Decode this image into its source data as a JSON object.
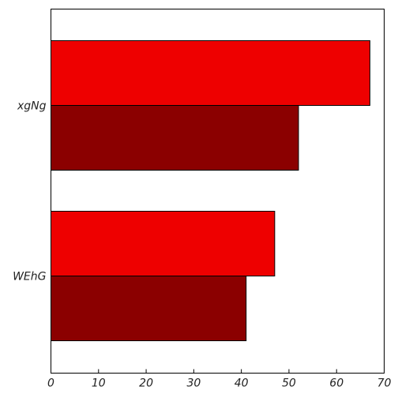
{
  "chart_data": {
    "type": "bar",
    "orientation": "horizontal",
    "categories": [
      "xgNg",
      "WEhG"
    ],
    "series": [
      {
        "values": [
          67,
          47
        ],
        "color": "#ee0000"
      },
      {
        "values": [
          52,
          41
        ],
        "color": "#8b0000"
      }
    ],
    "xlim": [
      0,
      70
    ],
    "xticks": [
      0,
      10,
      20,
      30,
      40,
      50,
      60,
      70
    ],
    "grid": false,
    "title": "",
    "xlabel": "",
    "ylabel": ""
  }
}
